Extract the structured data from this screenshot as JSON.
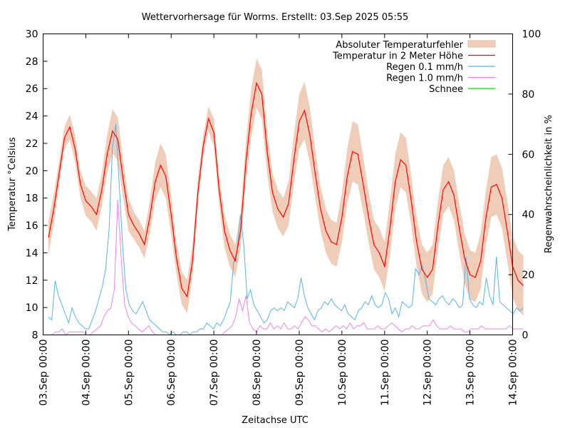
{
  "chart_data": {
    "type": "line",
    "title": "Wettervorhersage für Worms. Erstellt: 03.Sep 2025 05:55",
    "xlabel": "Zeitachse UTC",
    "ylabel": "Temperatur °Celsius",
    "y2label": "Regenwahrscheinlichkeit in %",
    "ylim": [
      8,
      30
    ],
    "y2lim": [
      0,
      100
    ],
    "grid": false,
    "legend_position": "top-right",
    "x_tick_labels": [
      "03.Sep 00:00",
      "04.Sep 00:00",
      "05.Sep 00:00",
      "06.Sep 00:00",
      "07.Sep 00:00",
      "08.Sep 00:00",
      "09.Sep 00:00",
      "10.Sep 00:00",
      "11.Sep 00:00",
      "12.Sep 00:00",
      "13.Sep 00:00",
      "14.Sep 00:00"
    ],
    "xlim_days": [
      0,
      11
    ],
    "y_ticks": [
      8,
      10,
      12,
      14,
      16,
      18,
      20,
      22,
      24,
      26,
      28,
      30
    ],
    "y2_ticks": [
      0,
      20,
      40,
      60,
      80,
      100
    ],
    "x_step_hours": 3,
    "x_start_hours": 3,
    "series": [
      {
        "name": "Temperatur in 2 Meter Höhe",
        "color": "#ff0000",
        "axis": "y",
        "values": [
          15.1,
          17.2,
          19.8,
          22.4,
          23.2,
          21.6,
          19.0,
          17.8,
          17.4,
          16.8,
          18.6,
          21.2,
          22.9,
          22.3,
          19.4,
          16.8,
          16.0,
          15.4,
          14.6,
          16.6,
          19.2,
          20.4,
          19.6,
          16.8,
          13.6,
          11.4,
          10.8,
          13.4,
          18.4,
          21.8,
          23.8,
          22.8,
          18.6,
          15.6,
          14.2,
          13.4,
          15.6,
          20.6,
          24.2,
          26.4,
          25.6,
          21.4,
          18.4,
          17.2,
          16.6,
          17.6,
          20.8,
          23.6,
          24.4,
          22.6,
          19.8,
          17.2,
          15.6,
          14.8,
          14.6,
          16.6,
          19.6,
          21.4,
          21.2,
          19.0,
          16.6,
          14.6,
          14.0,
          13.0,
          15.8,
          19.2,
          20.8,
          20.4,
          17.8,
          14.8,
          12.8,
          12.2,
          12.8,
          16.0,
          18.6,
          19.2,
          18.2,
          15.8,
          13.6,
          12.4,
          12.2,
          13.4,
          16.6,
          18.8,
          19.0,
          18.0,
          15.6,
          13.0,
          12.0,
          11.6
        ],
        "error": [
          1.2,
          1.1,
          0.9,
          0.8,
          0.9,
          1.0,
          1.0,
          1.1,
          1.1,
          1.2,
          1.2,
          1.4,
          1.6,
          1.6,
          1.4,
          1.2,
          1.0,
          1.0,
          1.0,
          1.2,
          1.4,
          1.6,
          1.6,
          1.4,
          1.2,
          1.2,
          1.2,
          1.2,
          1.0,
          0.8,
          0.9,
          1.0,
          1.1,
          1.2,
          1.2,
          1.2,
          1.3,
          1.5,
          1.8,
          1.8,
          1.8,
          1.6,
          1.4,
          1.4,
          1.4,
          1.6,
          1.8,
          2.0,
          2.1,
          2.0,
          1.8,
          1.6,
          1.6,
          1.6,
          1.6,
          1.8,
          2.0,
          2.2,
          2.2,
          2.0,
          1.8,
          1.8,
          1.8,
          1.8,
          2.0,
          2.0,
          2.0,
          2.0,
          1.8,
          1.8,
          1.8,
          1.8,
          1.8,
          1.8,
          1.8,
          1.8,
          1.8,
          1.8,
          1.8,
          1.8,
          1.8,
          2.0,
          2.0,
          2.2,
          2.2,
          2.2,
          2.2,
          2.2,
          2.2,
          2.2
        ]
      },
      {
        "name": "Regen 0.1 mm/h",
        "color": "#56b4e9",
        "axis": "y2",
        "values": [
          6,
          5,
          18,
          13,
          10,
          7,
          4,
          9,
          6,
          4,
          3,
          2,
          2,
          5,
          8,
          12,
          16,
          22,
          35,
          62,
          70,
          50,
          30,
          15,
          10,
          8,
          7,
          9,
          11,
          8,
          5,
          4,
          3,
          2,
          1,
          1,
          0,
          1,
          0,
          0,
          1,
          1,
          0,
          1,
          1,
          2,
          2,
          4,
          3,
          2,
          4,
          3,
          5,
          8,
          11,
          24,
          28,
          40,
          30,
          12,
          15,
          10,
          8,
          6,
          4,
          5,
          8,
          9,
          8,
          9,
          8,
          11,
          10,
          9,
          12,
          19,
          13,
          9,
          7,
          5,
          8,
          9,
          11,
          10,
          12,
          10,
          9,
          8,
          10,
          7,
          6,
          5,
          8,
          9,
          11,
          10,
          13,
          10,
          9,
          10,
          14,
          12,
          7,
          9,
          6,
          11,
          10,
          9,
          10,
          22,
          20,
          23,
          18,
          12,
          11,
          10,
          12,
          13,
          11,
          10,
          12,
          11,
          9,
          10,
          26,
          12,
          10,
          9,
          11,
          10,
          19,
          13,
          10,
          26,
          11,
          10,
          9,
          8,
          7,
          9,
          8,
          9
        ],
        "error": []
      },
      {
        "name": "Regen 1.0 mm/h",
        "color": "#ee82ee",
        "axis": "y2",
        "values": [
          0,
          0,
          1,
          1,
          2,
          0,
          1,
          1,
          1,
          1,
          1,
          0,
          0,
          1,
          2,
          3,
          6,
          8,
          9,
          15,
          45,
          25,
          10,
          6,
          4,
          3,
          2,
          1,
          2,
          3,
          1,
          0,
          0,
          0,
          0,
          0,
          0,
          0,
          0,
          0,
          0,
          0,
          0,
          0,
          0,
          0,
          0,
          0,
          0,
          0,
          0,
          1,
          2,
          3,
          6,
          12,
          8,
          13,
          4,
          2,
          1,
          3,
          2,
          2,
          4,
          2,
          3,
          2,
          4,
          2,
          2,
          3,
          2,
          4,
          6,
          5,
          3,
          3,
          2,
          1,
          2,
          1,
          2,
          3,
          2,
          3,
          2,
          4,
          2,
          3,
          3,
          4,
          2,
          2,
          2,
          3,
          2,
          2,
          3,
          4,
          3,
          2,
          1,
          2,
          2,
          3,
          2,
          2,
          3,
          3,
          3,
          5,
          3,
          2,
          2,
          2,
          3,
          2,
          2,
          2,
          1,
          1,
          2,
          2,
          2,
          3,
          2,
          2,
          2,
          2,
          2,
          2,
          2,
          3,
          2,
          2,
          2,
          2
        ],
        "error": []
      },
      {
        "name": "Schnee",
        "color": "#00dd00",
        "axis": "y2",
        "values": [],
        "error": []
      }
    ],
    "legend": [
      {
        "label": "Absoluter Temperaturfehler",
        "type": "band",
        "color": "#f0cdb8"
      },
      {
        "label": "Temperatur in 2 Meter Höhe",
        "type": "line",
        "color": "#ff0000"
      },
      {
        "label": "Regen 0.1 mm/h",
        "type": "line",
        "color": "#56b4e9"
      },
      {
        "label": "Regen 1.0 mm/h",
        "type": "line",
        "color": "#ee82ee"
      },
      {
        "label": "Schnee",
        "type": "line",
        "color": "#00dd00"
      }
    ]
  }
}
